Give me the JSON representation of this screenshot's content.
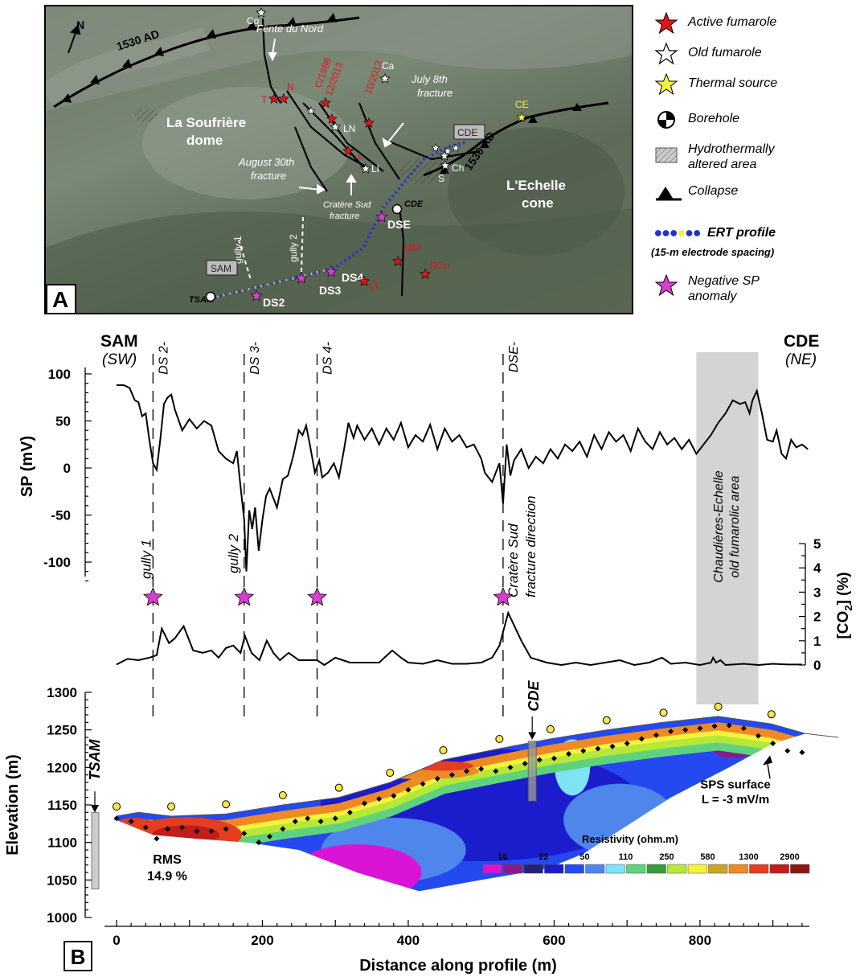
{
  "panel_a": {
    "label": "A",
    "north": "N",
    "place_labels": {
      "dome": [
        "La Soufrière",
        "dome"
      ],
      "cone": [
        "L'Echelle",
        "cone"
      ],
      "ad_1530_top": "1530 AD",
      "ad_1530_right": "1530 AD",
      "fente": "Fente du Nord",
      "july": [
        "July 8th",
        "fracture"
      ],
      "august": [
        "August 30th",
        "fracture"
      ],
      "cratere": [
        "Cratère Sud",
        "fracture"
      ],
      "gully1": "gully 1",
      "gully2": "gully 2",
      "sam": "SAM",
      "cde_box": "CDE",
      "cde_bh": "CDE",
      "tsam": "TSAM",
      "ds2": "DS2",
      "ds3": "DS3",
      "ds4": "DS4",
      "dse": "DSE"
    },
    "fumaroles_active": [
      "T",
      "N",
      "C/1998",
      "12/2013",
      "10/2013",
      "L",
      "MM",
      "RCn",
      "LT"
    ],
    "fumaroles_old": [
      "Co",
      "Ca",
      "LN",
      "LI",
      "Ch",
      "S"
    ],
    "thermal_source": "CE"
  },
  "legend": {
    "items": [
      {
        "label": "Active fumarole",
        "icon": "red-star-icon",
        "color": "#e3141c"
      },
      {
        "label": "Old fumarole",
        "icon": "white-star-icon",
        "color": "#ffffff"
      },
      {
        "label": "Thermal source",
        "icon": "yellow-star-icon",
        "color": "#f7ef3a"
      },
      {
        "label": "Borehole",
        "icon": "borehole-icon"
      },
      {
        "label": "Hydrothermally altered area",
        "icon": "hatched-area-icon"
      },
      {
        "label": "Collapse",
        "icon": "collapse-triangle-icon"
      },
      {
        "label": "ERT profile",
        "sublabel": "(15-m electrode spacing)",
        "icon": "dotted-profile-icon"
      },
      {
        "label": "Negative SP anomaly",
        "icon": "magenta-star-icon",
        "color": "#d63fd1"
      }
    ]
  },
  "chart_data": {
    "type": "line",
    "panel_label": "B",
    "x_axis": {
      "label": "Distance along profile (m)",
      "ticks": [
        0,
        200,
        400,
        600,
        800
      ],
      "lim": [
        0,
        950
      ]
    },
    "profile_ends": {
      "left": "SAM",
      "left_sub": "(SW)",
      "right": "CDE",
      "right_sub": "(NE)"
    },
    "markers": [
      {
        "name": "DS 2-",
        "x": 50,
        "annotation": "gully 1"
      },
      {
        "name": "DS 3-",
        "x": 175,
        "annotation": "gully 2"
      },
      {
        "name": "DS 4-",
        "x": 275,
        "annotation": ""
      },
      {
        "name": "DSE-",
        "x": 530,
        "annotation": "Cratère Sud fracture direction"
      }
    ],
    "sp": {
      "ylabel": "SP (mV)",
      "ylim": [
        -120,
        100
      ],
      "yticks": [
        100,
        50,
        0,
        -50,
        -100
      ],
      "points": [
        [
          0,
          88
        ],
        [
          10,
          88
        ],
        [
          18,
          85
        ],
        [
          25,
          72
        ],
        [
          30,
          70
        ],
        [
          35,
          55
        ],
        [
          40,
          58
        ],
        [
          45,
          30
        ],
        [
          50,
          5
        ],
        [
          55,
          -2
        ],
        [
          60,
          30
        ],
        [
          65,
          68
        ],
        [
          70,
          75
        ],
        [
          75,
          78
        ],
        [
          80,
          62
        ],
        [
          90,
          40
        ],
        [
          100,
          52
        ],
        [
          110,
          42
        ],
        [
          120,
          50
        ],
        [
          130,
          45
        ],
        [
          140,
          18
        ],
        [
          150,
          10
        ],
        [
          160,
          5
        ],
        [
          165,
          18
        ],
        [
          170,
          -20
        ],
        [
          175,
          -55
        ],
        [
          178,
          -110
        ],
        [
          182,
          -45
        ],
        [
          186,
          -65
        ],
        [
          190,
          -42
        ],
        [
          195,
          -88
        ],
        [
          200,
          -55
        ],
        [
          205,
          -30
        ],
        [
          210,
          -22
        ],
        [
          220,
          -42
        ],
        [
          228,
          -12
        ],
        [
          235,
          -8
        ],
        [
          242,
          12
        ],
        [
          250,
          40
        ],
        [
          255,
          35
        ],
        [
          260,
          45
        ],
        [
          265,
          25
        ],
        [
          272,
          -5
        ],
        [
          278,
          8
        ],
        [
          282,
          -10
        ],
        [
          290,
          -5
        ],
        [
          298,
          5
        ],
        [
          305,
          -10
        ],
        [
          312,
          20
        ],
        [
          318,
          48
        ],
        [
          325,
          32
        ],
        [
          330,
          45
        ],
        [
          340,
          30
        ],
        [
          350,
          42
        ],
        [
          360,
          25
        ],
        [
          370,
          42
        ],
        [
          380,
          30
        ],
        [
          390,
          48
        ],
        [
          400,
          22
        ],
        [
          410,
          35
        ],
        [
          420,
          28
        ],
        [
          430,
          46
        ],
        [
          440,
          20
        ],
        [
          450,
          42
        ],
        [
          460,
          28
        ],
        [
          470,
          35
        ],
        [
          480,
          22
        ],
        [
          490,
          25
        ],
        [
          500,
          10
        ],
        [
          505,
          -5
        ],
        [
          510,
          -10
        ],
        [
          515,
          -15
        ],
        [
          520,
          -5
        ],
        [
          525,
          5
        ],
        [
          530,
          -38
        ],
        [
          535,
          25
        ],
        [
          540,
          -8
        ],
        [
          545,
          8
        ],
        [
          555,
          20
        ],
        [
          565,
          0
        ],
        [
          575,
          12
        ],
        [
          585,
          5
        ],
        [
          595,
          20
        ],
        [
          605,
          10
        ],
        [
          615,
          25
        ],
        [
          625,
          18
        ],
        [
          635,
          28
        ],
        [
          645,
          12
        ],
        [
          655,
          35
        ],
        [
          665,
          20
        ],
        [
          675,
          38
        ],
        [
          685,
          28
        ],
        [
          695,
          35
        ],
        [
          705,
          18
        ],
        [
          715,
          42
        ],
        [
          725,
          28
        ],
        [
          735,
          20
        ],
        [
          745,
          38
        ],
        [
          755,
          25
        ],
        [
          765,
          32
        ],
        [
          775,
          20
        ],
        [
          785,
          30
        ],
        [
          795,
          15
        ],
        [
          805,
          25
        ],
        [
          815,
          35
        ],
        [
          825,
          48
        ],
        [
          835,
          58
        ],
        [
          845,
          72
        ],
        [
          855,
          68
        ],
        [
          862,
          70
        ],
        [
          868,
          58
        ],
        [
          872,
          72
        ],
        [
          878,
          82
        ],
        [
          885,
          58
        ],
        [
          892,
          30
        ],
        [
          900,
          28
        ],
        [
          905,
          40
        ],
        [
          912,
          15
        ],
        [
          918,
          10
        ],
        [
          925,
          30
        ],
        [
          932,
          22
        ],
        [
          940,
          25
        ],
        [
          948,
          20
        ]
      ]
    },
    "anomaly_stars_x": [
      50,
      175,
      275,
      530
    ],
    "co2": {
      "ylabel": "[CO2] (%)",
      "ylim": [
        0,
        5
      ],
      "yticks": [
        0,
        1,
        2,
        3,
        4,
        5
      ],
      "points": [
        [
          0,
          0.02
        ],
        [
          15,
          0.25
        ],
        [
          30,
          0.2
        ],
        [
          45,
          0.3
        ],
        [
          55,
          0.4
        ],
        [
          62,
          1.5
        ],
        [
          72,
          0.9
        ],
        [
          80,
          1.1
        ],
        [
          92,
          1.6
        ],
        [
          105,
          0.6
        ],
        [
          118,
          0.5
        ],
        [
          130,
          0.6
        ],
        [
          140,
          0.3
        ],
        [
          150,
          0.7
        ],
        [
          160,
          0.8
        ],
        [
          170,
          0.5
        ],
        [
          176,
          1.2
        ],
        [
          185,
          0.5
        ],
        [
          196,
          0.2
        ],
        [
          206,
          1.0
        ],
        [
          215,
          0.5
        ],
        [
          224,
          0.2
        ],
        [
          236,
          0.5
        ],
        [
          250,
          0.2
        ],
        [
          262,
          0.2
        ],
        [
          275,
          0.2
        ],
        [
          285,
          0.0
        ],
        [
          300,
          0.3
        ],
        [
          320,
          0.1
        ],
        [
          340,
          0.1
        ],
        [
          360,
          0.1
        ],
        [
          378,
          0.6
        ],
        [
          390,
          0.3
        ],
        [
          400,
          0.1
        ],
        [
          420,
          0.05
        ],
        [
          440,
          0.2
        ],
        [
          460,
          0.05
        ],
        [
          480,
          0.05
        ],
        [
          500,
          0.1
        ],
        [
          515,
          0.3
        ],
        [
          525,
          0.8
        ],
        [
          537,
          2.15
        ],
        [
          555,
          1.0
        ],
        [
          568,
          0.3
        ],
        [
          590,
          0.1
        ],
        [
          610,
          0.0
        ],
        [
          630,
          0.1
        ],
        [
          650,
          0.0
        ],
        [
          670,
          0.1
        ],
        [
          690,
          0.2
        ],
        [
          710,
          0.0
        ],
        [
          730,
          0.1
        ],
        [
          748,
          0.3
        ],
        [
          760,
          0.05
        ],
        [
          780,
          0.1
        ],
        [
          800,
          0.0
        ],
        [
          815,
          0.1
        ],
        [
          818,
          0.3
        ],
        [
          822,
          0.1
        ],
        [
          828,
          0.2
        ],
        [
          835,
          0.0
        ],
        [
          860,
          0.05
        ],
        [
          880,
          0.0
        ],
        [
          900,
          0.05
        ],
        [
          920,
          0.02
        ],
        [
          940,
          0.02
        ]
      ]
    },
    "shaded_area": {
      "x_range": [
        795,
        880
      ],
      "label": "Chaudières-Echelle old fumarolic area"
    },
    "elevation": {
      "ylabel": "Elevation (m)",
      "ylim": [
        1000,
        1300
      ],
      "yticks": [
        1000,
        1050,
        1100,
        1150,
        1200,
        1250,
        1300
      ],
      "rms_label": "RMS",
      "rms_value": "14.9 %",
      "boreholes": [
        {
          "name": "TSAM"
        },
        {
          "name": "CDE"
        }
      ],
      "sps_label": [
        "SPS surface",
        "L = -3 mV/m"
      ],
      "electrodes_x": [
        0,
        75,
        150,
        228,
        305,
        375,
        448,
        525,
        595,
        672,
        750,
        825,
        898
      ]
    },
    "resistivity_legend": {
      "title": "Resistivity (ohm.m)",
      "tick_labels": [
        "10",
        "22",
        "50",
        "110",
        "250",
        "580",
        "1300",
        "2900"
      ],
      "colors": [
        "#d914d6",
        "#8a1a8c",
        "#27207a",
        "#1b1ccc",
        "#2449f0",
        "#4f86ec",
        "#7fe2f5",
        "#5fd27e",
        "#3a9c3a",
        "#b6e837",
        "#f5f23d",
        "#c8a52a",
        "#ee8a25",
        "#e43d20",
        "#c31c1a",
        "#8a1512"
      ]
    }
  }
}
